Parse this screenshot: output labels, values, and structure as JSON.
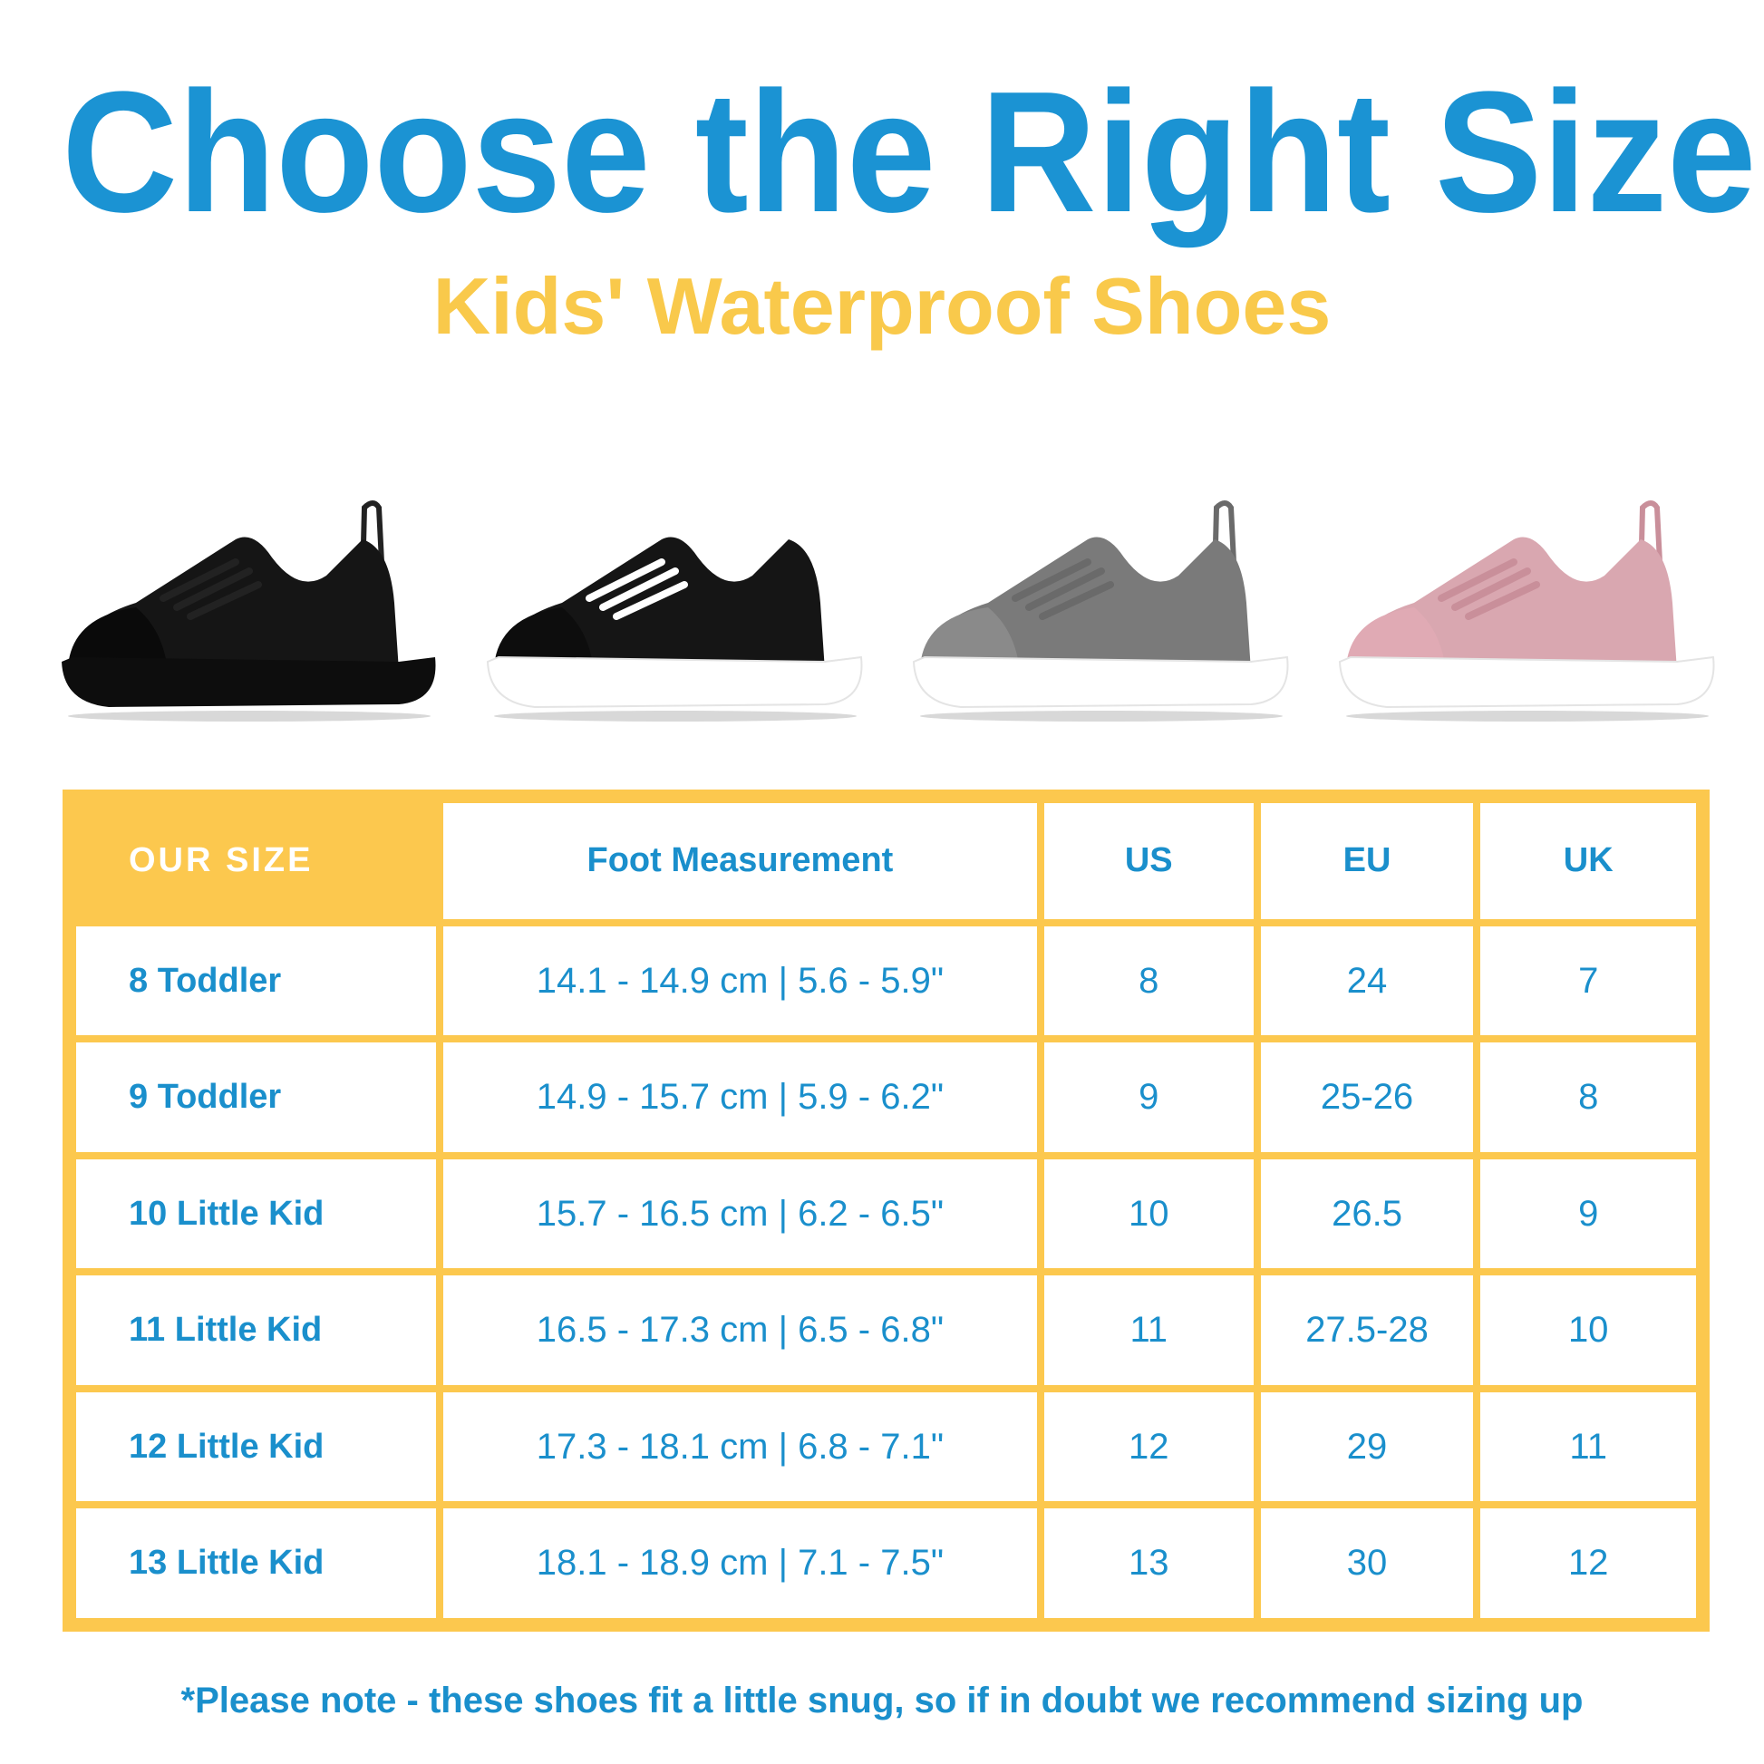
{
  "title": "Choose the Right Size",
  "subtitle": "Kids' Waterproof Shoes",
  "colors": {
    "title": "#1b93d3",
    "subtitle": "#f9c94b",
    "table_border": "#fcc84e",
    "table_text": "#1a8fcc"
  },
  "shoes": [
    {
      "upper": "#151515",
      "sole": "#0d0d0d",
      "lace": "#222222"
    },
    {
      "upper": "#151515",
      "sole": "#ffffff",
      "lace": "#ffffff"
    },
    {
      "upper": "#7a7a7a",
      "sole": "#ffffff",
      "lace": "#6a6a6a"
    },
    {
      "upper": "#d9a7b0",
      "sole": "#ffffff",
      "lace": "#c98f9a"
    }
  ],
  "table": {
    "headers": [
      "OUR SIZE",
      "Foot Measurement",
      "US",
      "EU",
      "UK"
    ],
    "rows": [
      [
        "8 Toddler",
        "14.1 - 14.9 cm | 5.6 - 5.9\"",
        "8",
        "24",
        "7"
      ],
      [
        "9 Toddler",
        "14.9 - 15.7 cm | 5.9 - 6.2\"",
        "9",
        "25-26",
        "8"
      ],
      [
        "10 Little Kid",
        "15.7 - 16.5 cm | 6.2 - 6.5\"",
        "10",
        "26.5",
        "9"
      ],
      [
        "11 Little Kid",
        "16.5 - 17.3 cm | 6.5 - 6.8\"",
        "11",
        "27.5-28",
        "10"
      ],
      [
        "12 Little Kid",
        "17.3 - 18.1 cm | 6.8 - 7.1\"",
        "12",
        "29",
        "11"
      ],
      [
        "13 Little Kid",
        "18.1 - 18.9 cm | 7.1 - 7.5\"",
        "13",
        "30",
        "12"
      ]
    ]
  },
  "footnote": "*Please note - these shoes fit a little snug, so if in doubt we recommend sizing up"
}
